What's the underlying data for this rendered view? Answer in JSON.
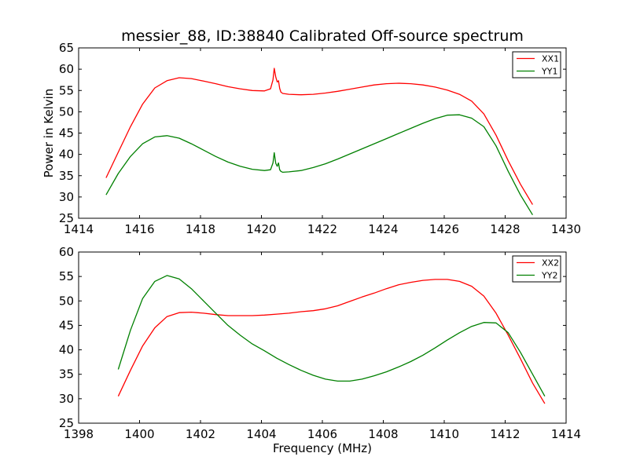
{
  "figure": {
    "title": "messier_88, ID:38840 Calibrated Off-source spectrum"
  },
  "chart_data": [
    {
      "type": "line",
      "title": "messier_88, ID:38840 Calibrated Off-source spectrum",
      "xlabel": "",
      "ylabel": "Power in Kelvin",
      "xlim": [
        1414,
        1430
      ],
      "ylim": [
        25,
        65
      ],
      "xticks": [
        1414,
        1416,
        1418,
        1420,
        1422,
        1424,
        1426,
        1428,
        1430
      ],
      "yticks": [
        25,
        30,
        35,
        40,
        45,
        50,
        55,
        60,
        65
      ],
      "grid": false,
      "legend": "top-right",
      "series": [
        {
          "name": "XX1",
          "color": "#ff0000",
          "x": [
            1414.9,
            1415.3,
            1415.7,
            1416.1,
            1416.5,
            1416.9,
            1417.3,
            1417.7,
            1418.1,
            1418.5,
            1418.9,
            1419.3,
            1419.7,
            1420.1,
            1420.3,
            1420.38,
            1420.42,
            1420.47,
            1420.52,
            1420.56,
            1420.6,
            1420.64,
            1420.7,
            1420.9,
            1421.3,
            1421.7,
            1422.1,
            1422.5,
            1422.9,
            1423.3,
            1423.7,
            1424.1,
            1424.5,
            1424.9,
            1425.3,
            1425.7,
            1426.1,
            1426.5,
            1426.9,
            1427.3,
            1427.7,
            1428.1,
            1428.5,
            1428.9
          ],
          "y": [
            34.5,
            40.5,
            46.5,
            51.8,
            55.6,
            57.3,
            58.0,
            57.8,
            57.2,
            56.6,
            55.9,
            55.4,
            55.0,
            54.9,
            55.4,
            57.5,
            60.2,
            58.2,
            57.0,
            57.3,
            55.5,
            54.6,
            54.3,
            54.1,
            54.0,
            54.1,
            54.4,
            54.8,
            55.3,
            55.8,
            56.3,
            56.6,
            56.7,
            56.6,
            56.3,
            55.8,
            55.1,
            54.1,
            52.5,
            49.5,
            44.5,
            38.5,
            33.0,
            28.2
          ]
        },
        {
          "name": "YY1",
          "color": "#008000",
          "x": [
            1414.9,
            1415.3,
            1415.7,
            1416.1,
            1416.5,
            1416.9,
            1417.3,
            1417.7,
            1418.1,
            1418.5,
            1418.9,
            1419.3,
            1419.7,
            1420.1,
            1420.3,
            1420.38,
            1420.42,
            1420.47,
            1420.52,
            1420.56,
            1420.6,
            1420.64,
            1420.7,
            1420.9,
            1421.3,
            1421.7,
            1422.1,
            1422.5,
            1422.9,
            1423.3,
            1423.7,
            1424.1,
            1424.5,
            1424.9,
            1425.3,
            1425.7,
            1426.1,
            1426.5,
            1426.9,
            1427.3,
            1427.7,
            1428.1,
            1428.5,
            1428.9
          ],
          "y": [
            30.5,
            35.5,
            39.5,
            42.5,
            44.1,
            44.4,
            43.8,
            42.5,
            41.0,
            39.5,
            38.2,
            37.2,
            36.5,
            36.2,
            36.4,
            38.0,
            40.4,
            37.9,
            37.2,
            38.0,
            36.4,
            36.0,
            35.8,
            35.9,
            36.2,
            36.9,
            37.8,
            38.9,
            40.1,
            41.3,
            42.5,
            43.7,
            44.9,
            46.1,
            47.3,
            48.4,
            49.2,
            49.3,
            48.5,
            46.5,
            42.0,
            36.0,
            30.5,
            25.8
          ]
        }
      ]
    },
    {
      "type": "line",
      "title": "",
      "xlabel": "Frequency (MHz)",
      "ylabel": "",
      "xlim": [
        1398,
        1414
      ],
      "ylim": [
        25,
        60
      ],
      "xticks": [
        1398,
        1400,
        1402,
        1404,
        1406,
        1408,
        1410,
        1412,
        1414
      ],
      "yticks": [
        25,
        30,
        35,
        40,
        45,
        50,
        55,
        60
      ],
      "grid": false,
      "legend": "top-right",
      "series": [
        {
          "name": "XX2",
          "color": "#ff0000",
          "x": [
            1399.3,
            1399.7,
            1400.1,
            1400.5,
            1400.9,
            1401.3,
            1401.7,
            1402.1,
            1402.5,
            1402.9,
            1403.3,
            1403.7,
            1404.1,
            1404.5,
            1404.9,
            1405.3,
            1405.7,
            1406.1,
            1406.5,
            1406.9,
            1407.3,
            1407.7,
            1408.1,
            1408.5,
            1408.9,
            1409.3,
            1409.7,
            1410.1,
            1410.5,
            1410.9,
            1411.3,
            1411.7,
            1412.1,
            1412.5,
            1412.9,
            1413.3
          ],
          "y": [
            30.5,
            35.8,
            40.8,
            44.5,
            46.8,
            47.6,
            47.7,
            47.5,
            47.2,
            47.0,
            47.0,
            47.0,
            47.1,
            47.3,
            47.5,
            47.8,
            48.0,
            48.4,
            49.0,
            49.9,
            50.8,
            51.6,
            52.5,
            53.3,
            53.8,
            54.2,
            54.4,
            54.4,
            54.0,
            53.0,
            51.0,
            47.5,
            43.0,
            38.2,
            33.2,
            29.0
          ]
        },
        {
          "name": "YY2",
          "color": "#008000",
          "x": [
            1399.3,
            1399.7,
            1400.1,
            1400.5,
            1400.9,
            1401.3,
            1401.7,
            1402.1,
            1402.5,
            1402.9,
            1403.3,
            1403.7,
            1404.1,
            1404.5,
            1404.9,
            1405.3,
            1405.7,
            1406.1,
            1406.5,
            1406.9,
            1407.3,
            1407.7,
            1408.1,
            1408.5,
            1408.9,
            1409.3,
            1409.7,
            1410.1,
            1410.5,
            1410.9,
            1411.3,
            1411.7,
            1412.1,
            1412.5,
            1412.9,
            1413.3
          ],
          "y": [
            36.0,
            44.0,
            50.5,
            54.0,
            55.2,
            54.5,
            52.5,
            50.0,
            47.5,
            45.0,
            43.0,
            41.2,
            39.8,
            38.3,
            37.0,
            35.8,
            34.8,
            34.0,
            33.6,
            33.6,
            34.0,
            34.7,
            35.5,
            36.5,
            37.6,
            38.9,
            40.4,
            42.0,
            43.5,
            44.8,
            45.6,
            45.5,
            43.5,
            39.5,
            35.0,
            30.5
          ]
        }
      ]
    }
  ]
}
